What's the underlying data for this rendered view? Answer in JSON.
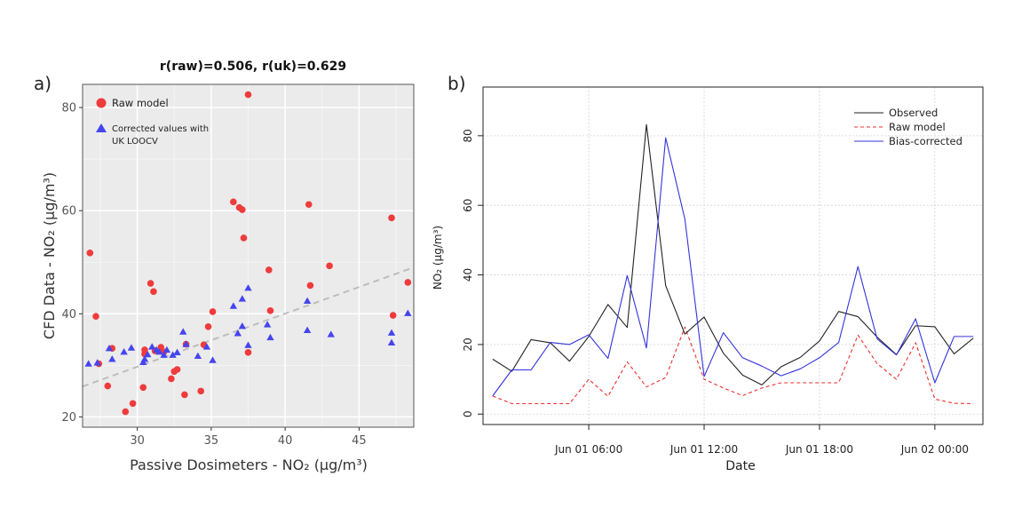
{
  "panel_labels": [
    "a)",
    "b)"
  ],
  "chart_data": [
    {
      "type": "scatter",
      "title": "r(raw)=0.506, r(uk)=0.629",
      "xlabel": "Passive Dosimeters - NO₂ (µg/m³)",
      "ylabel": "CFD Data - NO₂ (µg/m³)",
      "xlim": [
        26.3,
        48.7
      ],
      "ylim": [
        18.0,
        84.5
      ],
      "xticks": [
        30,
        35,
        40,
        45
      ],
      "yticks": [
        20,
        40,
        60,
        80
      ],
      "grid": true,
      "legend_position": "top-left",
      "reference_line": {
        "style": "dashed",
        "color": "#bdbdbd",
        "x": [
          26.3,
          48.7
        ],
        "y": [
          25.9,
          49.0
        ]
      },
      "series": [
        {
          "name": "Raw model",
          "marker": "circle",
          "color": "#ef3b3b",
          "points": [
            [
              26.8,
              51.8
            ],
            [
              27.2,
              39.5
            ],
            [
              27.4,
              30.3
            ],
            [
              28.0,
              26.0
            ],
            [
              28.3,
              33.3
            ],
            [
              29.2,
              21.0
            ],
            [
              29.7,
              22.6
            ],
            [
              30.4,
              25.7
            ],
            [
              30.5,
              33.0
            ],
            [
              30.5,
              32.2
            ],
            [
              30.9,
              45.9
            ],
            [
              31.1,
              44.3
            ],
            [
              31.2,
              32.8
            ],
            [
              31.6,
              33.5
            ],
            [
              31.8,
              32.6
            ],
            [
              32.3,
              27.4
            ],
            [
              32.5,
              28.8
            ],
            [
              32.7,
              29.2
            ],
            [
              33.2,
              24.3
            ],
            [
              33.3,
              34.1
            ],
            [
              34.3,
              25.0
            ],
            [
              34.5,
              34.0
            ],
            [
              34.8,
              37.5
            ],
            [
              35.1,
              40.4
            ],
            [
              36.5,
              61.7
            ],
            [
              36.9,
              60.6
            ],
            [
              37.1,
              60.2
            ],
            [
              37.2,
              54.7
            ],
            [
              37.5,
              82.5
            ],
            [
              37.5,
              32.5
            ],
            [
              38.9,
              48.5
            ],
            [
              39.0,
              40.6
            ],
            [
              41.6,
              61.2
            ],
            [
              41.7,
              45.5
            ],
            [
              43.0,
              49.3
            ],
            [
              47.2,
              58.6
            ],
            [
              47.3,
              39.7
            ],
            [
              48.3,
              46.1
            ]
          ]
        },
        {
          "name": "Corrected values with UK LOOCV",
          "marker": "triangle",
          "color": "#4545ee",
          "points": [
            [
              26.7,
              30.3
            ],
            [
              27.3,
              30.5
            ],
            [
              28.1,
              33.3
            ],
            [
              28.3,
              31.2
            ],
            [
              29.1,
              32.6
            ],
            [
              29.6,
              33.4
            ],
            [
              30.4,
              30.6
            ],
            [
              30.5,
              31.2
            ],
            [
              30.7,
              32.1
            ],
            [
              31.0,
              33.6
            ],
            [
              31.3,
              33.0
            ],
            [
              31.5,
              32.6
            ],
            [
              31.8,
              32.0
            ],
            [
              32.0,
              33.0
            ],
            [
              32.4,
              32.0
            ],
            [
              32.7,
              32.5
            ],
            [
              33.1,
              36.5
            ],
            [
              33.3,
              34.1
            ],
            [
              34.1,
              31.8
            ],
            [
              34.7,
              33.6
            ],
            [
              35.1,
              31.0
            ],
            [
              36.5,
              41.5
            ],
            [
              36.8,
              36.2
            ],
            [
              37.1,
              42.9
            ],
            [
              37.1,
              37.6
            ],
            [
              37.5,
              45.0
            ],
            [
              37.5,
              33.9
            ],
            [
              38.8,
              37.9
            ],
            [
              39.0,
              35.4
            ],
            [
              41.5,
              42.5
            ],
            [
              41.5,
              36.8
            ],
            [
              43.1,
              36.0
            ],
            [
              47.2,
              36.3
            ],
            [
              47.2,
              34.4
            ],
            [
              48.3,
              40.1
            ]
          ]
        }
      ]
    },
    {
      "type": "line",
      "title": "",
      "xlabel": "Date",
      "ylabel": "NO₂ (µg/m³)",
      "xticklabels": [
        "Jun 01 06:00",
        "Jun 01 12:00",
        "Jun 01 18:00",
        "Jun 02 00:00"
      ],
      "xtick_hours": [
        6,
        12,
        18,
        24
      ],
      "xlim_hours": [
        0.5,
        26.5
      ],
      "ylim": [
        -3.0,
        94.0
      ],
      "yticks": [
        0,
        20,
        40,
        60,
        80
      ],
      "grid": true,
      "legend_position": "top-right",
      "x_hours": [
        1,
        2,
        3,
        4,
        5,
        6,
        7,
        8,
        9,
        10,
        11,
        12,
        13,
        14,
        15,
        16,
        17,
        18,
        19,
        20,
        21,
        22,
        23,
        24,
        25,
        26
      ],
      "series": [
        {
          "name": "Observed",
          "color": "#222222",
          "dash": "solid",
          "values": [
            15.8,
            12.3,
            21.4,
            20.5,
            15.2,
            22.3,
            31.5,
            24.9,
            83.2,
            36.9,
            23.0,
            27.9,
            17.5,
            11.2,
            8.4,
            13.6,
            16.3,
            21.0,
            29.5,
            28.0,
            22.1,
            17.1,
            25.4,
            25.1,
            17.3,
            21.8
          ]
        },
        {
          "name": "Raw model",
          "color": "#ee3030",
          "dash": "dashed",
          "values": [
            5.2,
            3.0,
            3.0,
            3.0,
            3.0,
            10.0,
            5.1,
            15.0,
            7.8,
            10.5,
            25.0,
            10.0,
            7.5,
            5.3,
            7.5,
            9.0,
            9.0,
            9.0,
            9.0,
            22.7,
            14.5,
            10.0,
            20.5,
            4.3,
            3.1,
            3.0
          ]
        },
        {
          "name": "Bias-corrected",
          "color": "#3333dd",
          "dash": "solid",
          "values": [
            5.2,
            12.7,
            12.7,
            20.6,
            20.0,
            22.8,
            16.0,
            39.8,
            19.0,
            79.4,
            56.0,
            10.8,
            23.4,
            16.2,
            13.8,
            11.0,
            13.0,
            16.2,
            20.6,
            42.4,
            21.6,
            17.0,
            27.4,
            9.0,
            22.3,
            22.3
          ]
        }
      ]
    }
  ]
}
